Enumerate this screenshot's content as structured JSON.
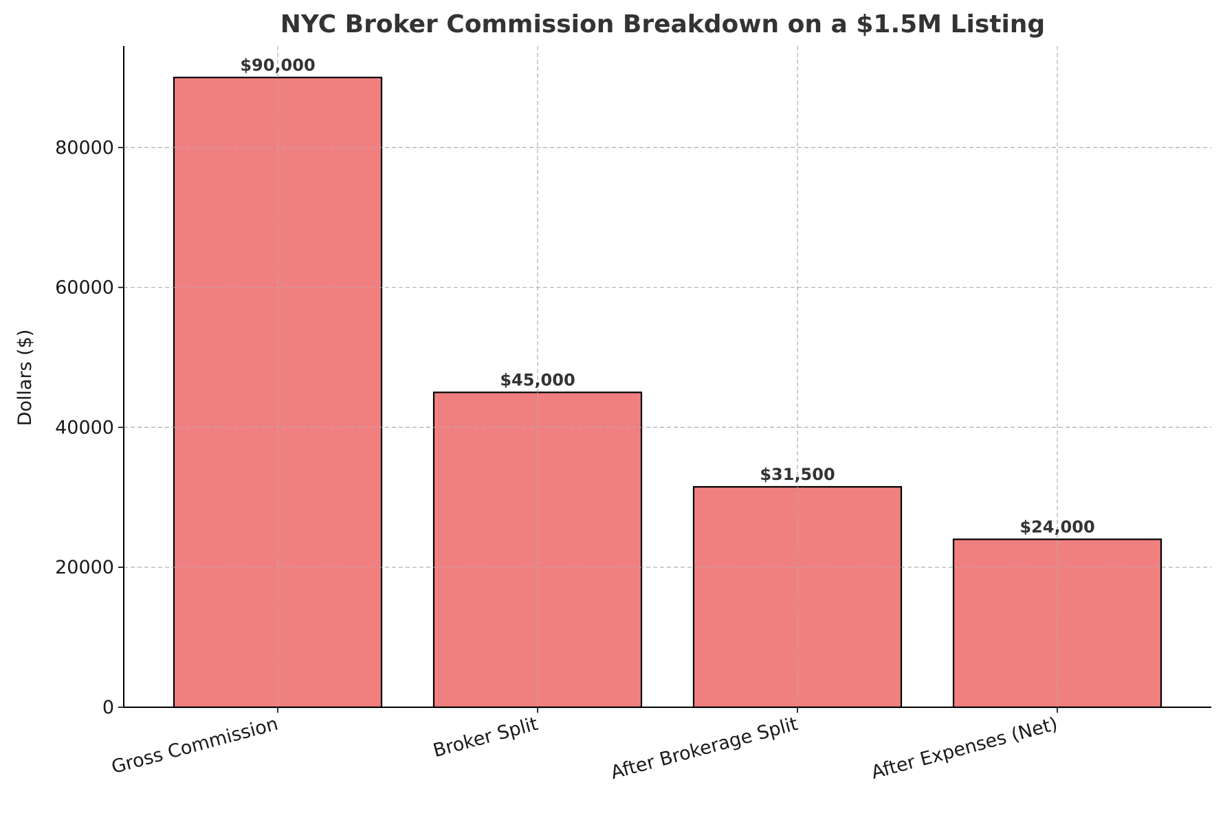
{
  "chart_data": {
    "type": "bar",
    "title": "NYC Broker Commission Breakdown on a $1.5M Listing",
    "xlabel": "",
    "ylabel": "Dollars ($)",
    "categories": [
      "Gross Commission",
      "Broker Split",
      "After Brokerage Split",
      "After Expenses (Net)"
    ],
    "values": [
      90000,
      45000,
      31500,
      24000
    ],
    "data_labels": [
      "$90,000",
      "$45,000",
      "$31,500",
      "$24,000"
    ],
    "ylim": [
      0,
      94500
    ],
    "yticks": [
      0,
      20000,
      40000,
      60000,
      80000
    ],
    "ytick_labels": [
      "0",
      "20000",
      "40000",
      "60000",
      "80000"
    ],
    "grid": true,
    "bar_color": "#f08080",
    "bar_edge_color": "#000000"
  }
}
